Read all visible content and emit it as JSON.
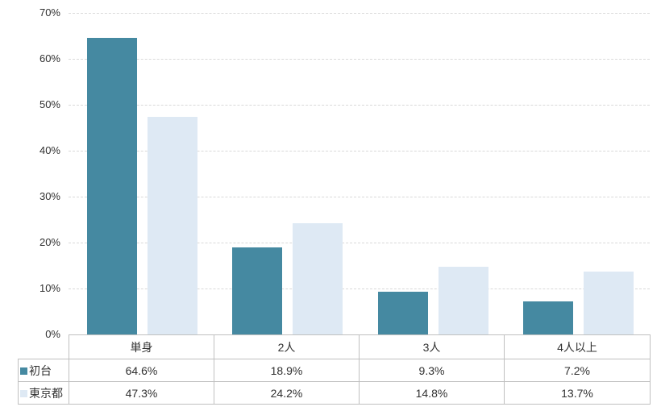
{
  "chart_data": {
    "type": "bar",
    "title": "",
    "xlabel": "",
    "ylabel": "",
    "categories": [
      "単身",
      "2人",
      "3人",
      "4人以上"
    ],
    "series": [
      {
        "name": "初台",
        "color": "#4589a1",
        "values": [
          64.6,
          18.9,
          9.3,
          7.2
        ],
        "value_labels": [
          "64.6%",
          "18.9%",
          "9.3%",
          "7.2%"
        ]
      },
      {
        "name": "東京都",
        "color": "#dee9f4",
        "values": [
          47.3,
          24.2,
          14.8,
          13.7
        ],
        "value_labels": [
          "47.3%",
          "24.2%",
          "14.8%",
          "13.7%"
        ]
      }
    ],
    "ylim": [
      0,
      70
    ],
    "yticks": [
      0,
      10,
      20,
      30,
      40,
      50,
      60,
      70
    ],
    "ytick_labels": [
      "0%",
      "10%",
      "20%",
      "30%",
      "40%",
      "50%",
      "60%",
      "70%"
    ],
    "grid": "horizontal-dashed",
    "legend_position": "data-table-left-column"
  },
  "colors": {
    "series_1": "#4589a1",
    "series_2": "#dee9f4",
    "gridline": "#d9d9d9",
    "table_border": "#c0c0c0",
    "text": "#303030",
    "background": "#ffffff"
  }
}
